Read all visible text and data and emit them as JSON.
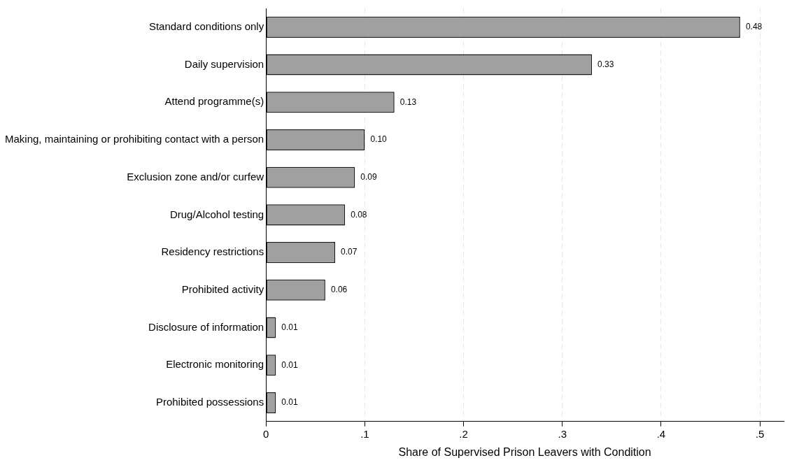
{
  "chart_data": {
    "type": "bar",
    "orientation": "horizontal",
    "categories": [
      "Standard conditions only",
      "Daily supervision",
      "Attend programme(s)",
      "Making, maintaining or prohibiting contact with a person",
      "Exclusion zone and/or curfew",
      "Drug/Alcohol testing",
      "Residency restrictions",
      "Prohibited activity",
      "Disclosure of information",
      "Electronic monitoring",
      "Prohibited possessions"
    ],
    "values": [
      0.48,
      0.33,
      0.13,
      0.1,
      0.09,
      0.08,
      0.07,
      0.06,
      0.01,
      0.01,
      0.01
    ],
    "value_labels": [
      "0.48",
      "0.33",
      "0.13",
      "0.10",
      "0.09",
      "0.08",
      "0.07",
      "0.06",
      "0.01",
      "0.01",
      "0.01"
    ],
    "color": "#a0a0a0",
    "xlabel": "Share of Supervised Prison Leavers with Condition",
    "xlim": [
      0,
      0.524
    ],
    "xticks": [
      {
        "value": 0,
        "label": "0"
      },
      {
        "value": 0.1,
        "label": ".1"
      },
      {
        "value": 0.2,
        "label": ".2"
      },
      {
        "value": 0.3,
        "label": ".3"
      },
      {
        "value": 0.4,
        "label": ".4"
      },
      {
        "value": 0.5,
        "label": ".5"
      }
    ],
    "grid": "x",
    "legend": false
  }
}
